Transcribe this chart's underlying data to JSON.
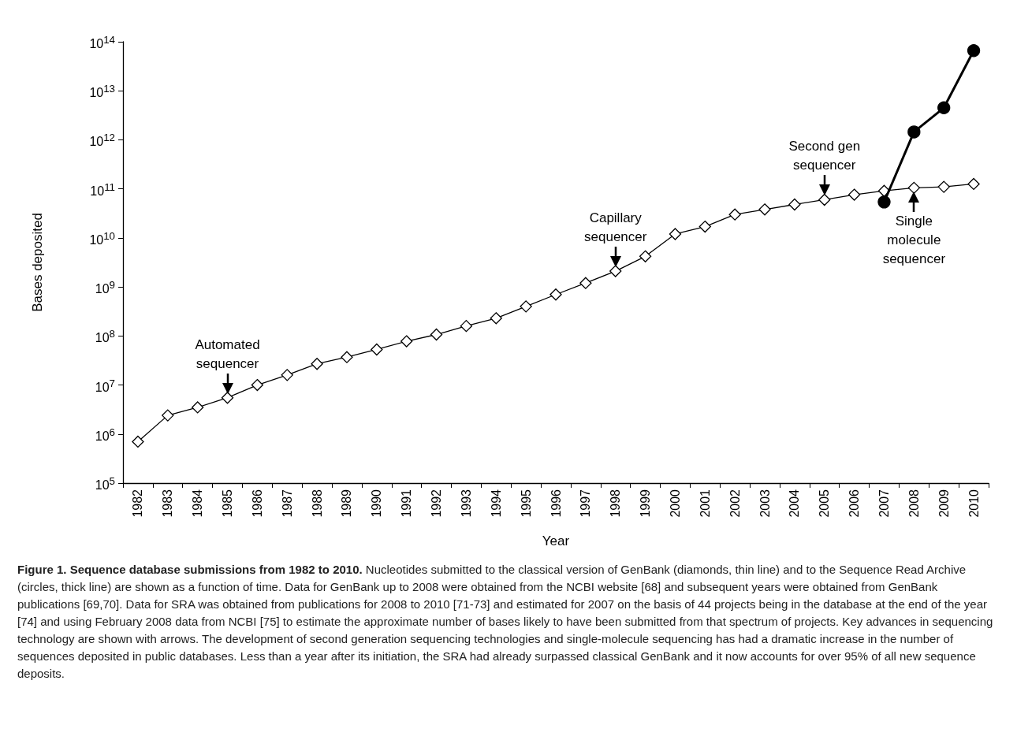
{
  "chart_data": {
    "type": "line",
    "title": "Figure 1. Sequence database submissions from 1982 to 2010.",
    "xlabel": "Year",
    "ylabel": "Bases deposited",
    "categories": [
      "1982",
      "1983",
      "1984",
      "1985",
      "1986",
      "1987",
      "1988",
      "1989",
      "1990",
      "1991",
      "1992",
      "1993",
      "1994",
      "1995",
      "1996",
      "1997",
      "1998",
      "1999",
      "2000",
      "2001",
      "2002",
      "2003",
      "2004",
      "2005",
      "2006",
      "2007",
      "2008",
      "2009",
      "2010"
    ],
    "series": [
      {
        "color": "#000000",
        "marker": "diamond",
        "values": [
          700000,
          2400000,
          3500000,
          5500000,
          10000000,
          16000000,
          27000000,
          37000000,
          53000000,
          78000000,
          107000000,
          160000000,
          230000000,
          400000000,
          700000000,
          1200000000,
          2100000000,
          4200000000,
          12000000000,
          17000000000,
          30000000000,
          38000000000,
          48000000000,
          60000000000,
          76000000000,
          91000000000,
          105000000000,
          110000000000,
          126000000000
        ]
      },
      {
        "color": "#000000",
        "marker": "circle",
        "values": [
          null,
          null,
          null,
          null,
          null,
          null,
          null,
          null,
          null,
          null,
          null,
          null,
          null,
          null,
          null,
          null,
          null,
          null,
          null,
          null,
          null,
          null,
          null,
          null,
          null,
          54000000000,
          1450000000000,
          4500000000000,
          66000000000000
        ]
      }
    ],
    "log": true,
    "ylim": [
      100000,
      100000000000000
    ],
    "yticks": [
      {
        "value": 100000,
        "label": "10$^{5}$"
      },
      {
        "value": 1000000,
        "label": "10$^{6}$"
      },
      {
        "value": 10000000,
        "label": "10$^{7}$"
      },
      {
        "value": 100000000,
        "label": "10$^{8}$"
      },
      {
        "value": 1000000000,
        "label": "10$^{9}$"
      },
      {
        "value": 10000000000,
        "label": "10$^{10}$"
      },
      {
        "value": 100000000000,
        "label": "10$^{11}$"
      },
      {
        "value": 1000000000000,
        "label": "10$^{12}$"
      },
      {
        "value": 10000000000000,
        "label": "10$^{13}$"
      },
      {
        "value": 100000000000000,
        "label": "10$^{14}$"
      }
    ],
    "grid": false,
    "annotations": [
      {
        "text": "Automated\nsequencer",
        "x": "1985",
        "y": 5500000
      },
      {
        "text": "Capillary\nsequencer",
        "x": "1998",
        "y": 2100000000
      },
      {
        "text": "Second gen\nsequencer",
        "x": "2005",
        "y": 60000000000
      },
      {
        "text": "Single\nmolecule\nsequencer",
        "x": "2008",
        "y": 105000000000
      },
      "Nucleotides submitted to the classical version of GenBank (diamonds, thin line) and to the Sequence Read Archive (circles, thick line) are shown as a function of time. Data for GenBank up to 2008 were obtained from the NCBI website [68] and subsequent years were obtained from GenBank publications [69,70]. Data for SRA was obtained from publications for 2008 to 2010 [71-73] and estimated for 2007 on the basis of 44 projects being in the database at the end of the year [74] and using February 2008 data from NCBI [75] to estimate the approximate number of bases likely to have been submitted from that spectrum of projects. Key advances in sequencing technology are shown with arrows. The development of second generation sequencing technologies and single-molecule sequencing has had a dramatic increase in the number of sequences deposited in public databases. Less than a year after its initiation, the SRA had already surpassed classical GenBank and it now accounts for over 95% of all new sequence deposits."
    ]
  }
}
